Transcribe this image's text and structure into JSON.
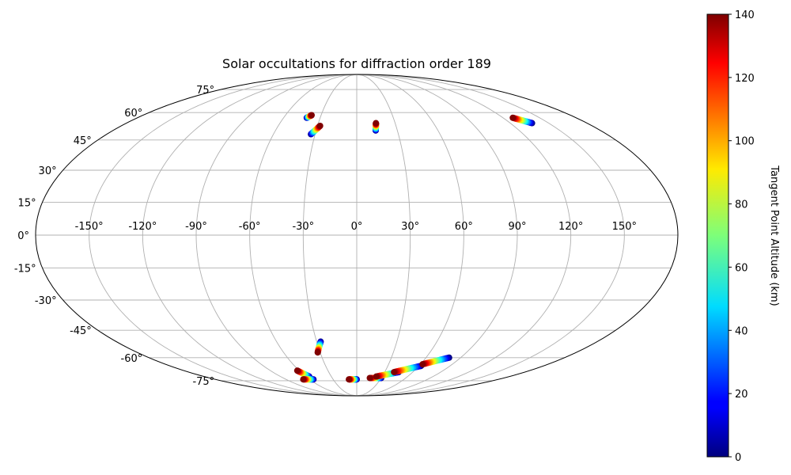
{
  "chart_data": {
    "type": "scatter",
    "projection": "mollweide",
    "title": "Solar occultations for diffraction order 189",
    "xlabel": "",
    "ylabel": "",
    "grid": true,
    "xlim": [
      -180,
      180
    ],
    "ylim": [
      -90,
      90
    ],
    "lon_ticks": [
      {
        "value": -150,
        "label": "-150°"
      },
      {
        "value": -120,
        "label": "-120°"
      },
      {
        "value": -90,
        "label": "-90°"
      },
      {
        "value": -60,
        "label": "-60°"
      },
      {
        "value": -30,
        "label": "-30°"
      },
      {
        "value": 0,
        "label": "0°"
      },
      {
        "value": 30,
        "label": "30°"
      },
      {
        "value": 60,
        "label": "60°"
      },
      {
        "value": 90,
        "label": "90°"
      },
      {
        "value": 120,
        "label": "120°"
      },
      {
        "value": 150,
        "label": "150°"
      }
    ],
    "lat_ticks": [
      {
        "value": 75,
        "label": "75°"
      },
      {
        "value": 60,
        "label": "60°"
      },
      {
        "value": 45,
        "label": "45°"
      },
      {
        "value": 30,
        "label": "30°"
      },
      {
        "value": 15,
        "label": "15°"
      },
      {
        "value": 0,
        "label": "0°"
      },
      {
        "value": -15,
        "label": "-15°"
      },
      {
        "value": -30,
        "label": "-30°"
      },
      {
        "value": -45,
        "label": "-45°"
      },
      {
        "value": -60,
        "label": "-60°"
      },
      {
        "value": -75,
        "label": "-75°"
      }
    ],
    "colorbar": {
      "label": "Tangent Point Altitude (km)",
      "colormap": "jet",
      "range": [
        0,
        140
      ],
      "ticks": [
        {
          "value": 0,
          "label": "0"
        },
        {
          "value": 20,
          "label": "20"
        },
        {
          "value": 40,
          "label": "40"
        },
        {
          "value": 60,
          "label": "60"
        },
        {
          "value": 80,
          "label": "80"
        },
        {
          "value": 100,
          "label": "100"
        },
        {
          "value": 120,
          "label": "120"
        },
        {
          "value": 140,
          "label": "140"
        }
      ]
    },
    "series": [
      {
        "start": {
          "lon": -41,
          "lat": 57,
          "alt": 0
        },
        "end": {
          "lon": -38,
          "lat": 58.5,
          "alt": 140
        }
      },
      {
        "start": {
          "lon": -33,
          "lat": 48,
          "alt": 0
        },
        "end": {
          "lon": -28,
          "lat": 52.5,
          "alt": 140
        }
      },
      {
        "start": {
          "lon": 14,
          "lat": 50,
          "alt": 0
        },
        "end": {
          "lon": 15,
          "lat": 54,
          "alt": 140
        }
      },
      {
        "start": {
          "lon": 137,
          "lat": 54,
          "alt": 0
        },
        "end": {
          "lon": 128,
          "lat": 57,
          "alt": 140
        }
      },
      {
        "start": {
          "lon": -27,
          "lat": -51,
          "alt": 0
        },
        "end": {
          "lon": -32,
          "lat": -57,
          "alt": 140
        }
      },
      {
        "start": {
          "lon": -56,
          "lat": -72,
          "alt": 0
        },
        "end": {
          "lon": -62,
          "lat": -68,
          "alt": 140
        }
      },
      {
        "start": {
          "lon": -55,
          "lat": -74,
          "alt": 0
        },
        "end": {
          "lon": -68,
          "lat": -74,
          "alt": 140
        }
      },
      {
        "start": {
          "lon": 0,
          "lat": -74,
          "alt": 0
        },
        "end": {
          "lon": -10,
          "lat": -74,
          "alt": 140
        }
      },
      {
        "start": {
          "lon": 30,
          "lat": -73,
          "alt": 0
        },
        "end": {
          "lon": 16,
          "lat": -73,
          "alt": 140
        }
      },
      {
        "start": {
          "lon": 45,
          "lat": -69,
          "alt": 0
        },
        "end": {
          "lon": 23,
          "lat": -72,
          "alt": 140
        }
      },
      {
        "start": {
          "lon": 62,
          "lat": -65,
          "alt": 0
        },
        "end": {
          "lon": 40,
          "lat": -69,
          "alt": 140
        }
      },
      {
        "start": {
          "lon": 80,
          "lat": -60,
          "alt": 0
        },
        "end": {
          "lon": 62,
          "lat": -64,
          "alt": 140
        }
      }
    ]
  }
}
